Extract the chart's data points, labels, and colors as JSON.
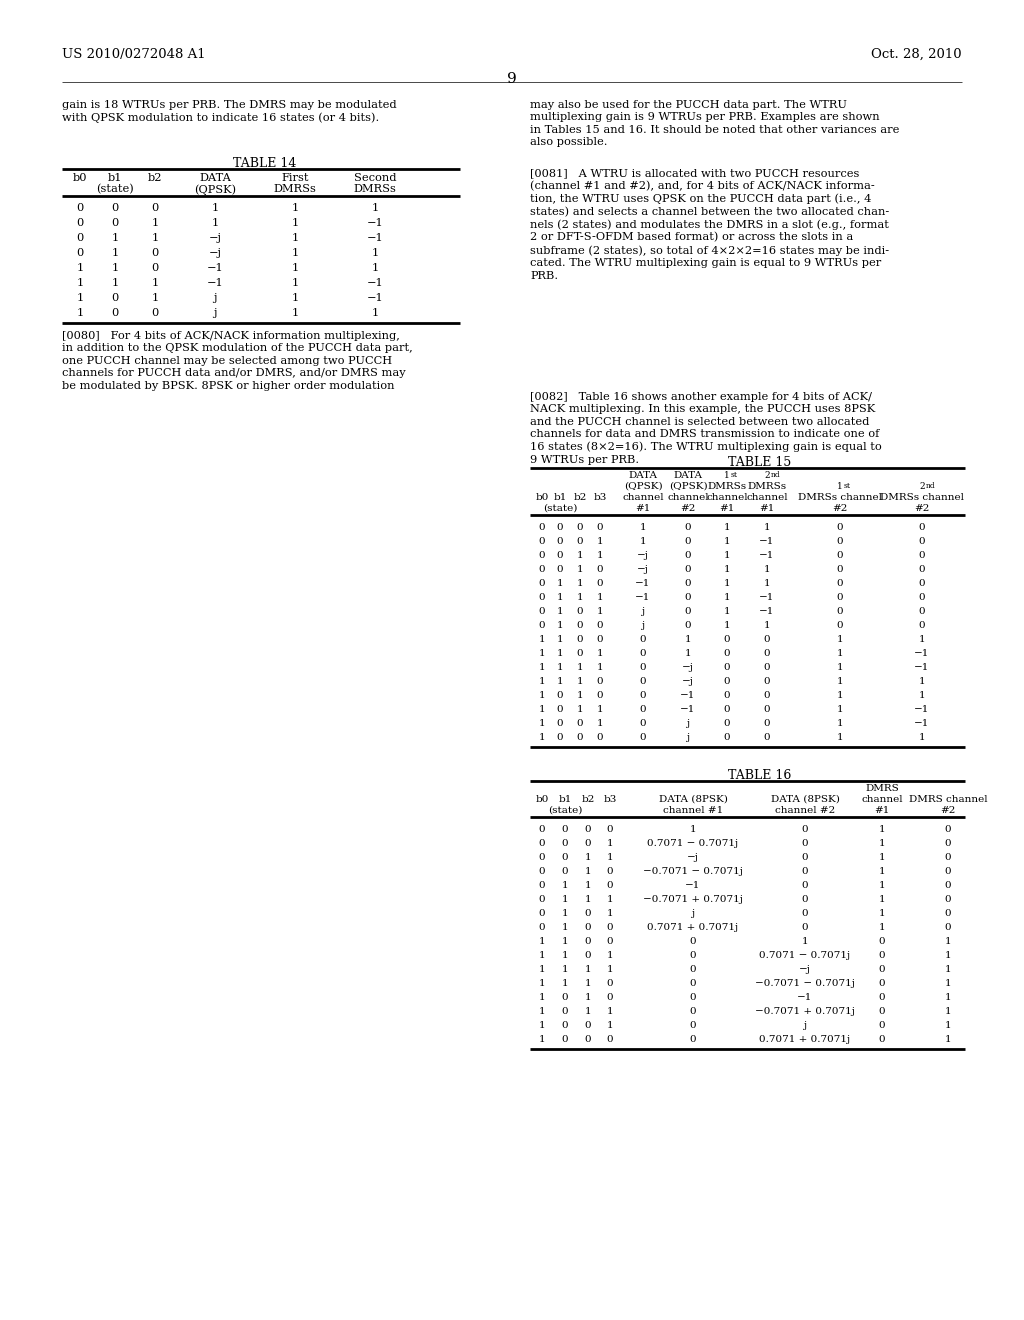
{
  "page_header_left": "US 2010/0272048 A1",
  "page_header_right": "Oct. 28, 2010",
  "page_number": "9",
  "left_col_text_1": "gain is 18 WTRUs per PRB. The DMRS may be modulated\nwith QPSK modulation to indicate 16 states (or 4 bits).",
  "left_col_text_2": "[0080]   For 4 bits of ACK/NACK information multiplexing,\nin addition to the QPSK modulation of the PUCCH data part,\none PUCCH channel may be selected among two PUCCH\nchannels for PUCCH data and/or DMRS, and/or DMRS may\nbe modulated by BPSK. 8PSK or higher order modulation",
  "right_col_text_1": "may also be used for the PUCCH data part. The WTRU\nmultiplexing gain is 9 WTRUs per PRB. Examples are shown\nin Tables 15 and 16. It should be noted that other variances are\nalso possible.",
  "right_col_text_2": "[0081]   A WTRU is allocated with two PUCCH resources\n(channel #1 and #2), and, for 4 bits of ACK/NACK informa-\ntion, the WTRU uses QPSK on the PUCCH data part (i.e., 4\nstates) and selects a channel between the two allocated chan-\nnels (2 states) and modulates the DMRS in a slot (e.g., format\n2 or DFT-S-OFDM based format) or across the slots in a\nsubframe (2 states), so total of 4×2×2=16 states may be indi-\ncated. The WTRU multiplexing gain is equal to 9 WTRUs per\nPRB.",
  "right_col_text_3": "[0082]   Table 16 shows another example for 4 bits of ACK/\nNACK multiplexing. In this example, the PUCCH uses 8PSK\nand the PUCCH channel is selected between two allocated\nchannels for data and DMRS transmission to indicate one of\n16 states (8×2=16). The WTRU multiplexing gain is equal to\n9 WTRUs per PRB.",
  "table14_title": "TABLE 14",
  "table14_data": [
    [
      "0",
      "0",
      "0",
      "1",
      "1",
      "1"
    ],
    [
      "0",
      "0",
      "1",
      "1",
      "1",
      "−1"
    ],
    [
      "0",
      "1",
      "1",
      "−j",
      "1",
      "−1"
    ],
    [
      "0",
      "1",
      "0",
      "−j",
      "1",
      "1"
    ],
    [
      "1",
      "1",
      "0",
      "−1",
      "1",
      "1"
    ],
    [
      "1",
      "1",
      "1",
      "−1",
      "1",
      "−1"
    ],
    [
      "1",
      "0",
      "1",
      "j",
      "1",
      "−1"
    ],
    [
      "1",
      "0",
      "0",
      "j",
      "1",
      "1"
    ]
  ],
  "table15_title": "TABLE 15",
  "table15_data": [
    [
      "0",
      "0",
      "0",
      "0",
      "1",
      "0",
      "1",
      "1",
      "0",
      "0"
    ],
    [
      "0",
      "0",
      "0",
      "1",
      "1",
      "0",
      "1",
      "−1",
      "0",
      "0"
    ],
    [
      "0",
      "0",
      "1",
      "1",
      "−j",
      "0",
      "1",
      "−1",
      "0",
      "0"
    ],
    [
      "0",
      "0",
      "1",
      "0",
      "−j",
      "0",
      "1",
      "1",
      "0",
      "0"
    ],
    [
      "0",
      "1",
      "1",
      "0",
      "−1",
      "0",
      "1",
      "1",
      "0",
      "0"
    ],
    [
      "0",
      "1",
      "1",
      "1",
      "−1",
      "0",
      "1",
      "−1",
      "0",
      "0"
    ],
    [
      "0",
      "1",
      "0",
      "1",
      "j",
      "0",
      "1",
      "−1",
      "0",
      "0"
    ],
    [
      "0",
      "1",
      "0",
      "0",
      "j",
      "0",
      "1",
      "1",
      "0",
      "0"
    ],
    [
      "1",
      "1",
      "0",
      "0",
      "0",
      "1",
      "0",
      "0",
      "1",
      "1"
    ],
    [
      "1",
      "1",
      "0",
      "1",
      "0",
      "1",
      "0",
      "0",
      "1",
      "−1"
    ],
    [
      "1",
      "1",
      "1",
      "1",
      "0",
      "−j",
      "0",
      "0",
      "1",
      "−1"
    ],
    [
      "1",
      "1",
      "1",
      "0",
      "0",
      "−j",
      "0",
      "0",
      "1",
      "1"
    ],
    [
      "1",
      "0",
      "1",
      "0",
      "0",
      "−1",
      "0",
      "0",
      "1",
      "1"
    ],
    [
      "1",
      "0",
      "1",
      "1",
      "0",
      "−1",
      "0",
      "0",
      "1",
      "−1"
    ],
    [
      "1",
      "0",
      "0",
      "1",
      "0",
      "j",
      "0",
      "0",
      "1",
      "−1"
    ],
    [
      "1",
      "0",
      "0",
      "0",
      "0",
      "j",
      "0",
      "0",
      "1",
      "1"
    ]
  ],
  "table16_title": "TABLE 16",
  "table16_data": [
    [
      "0",
      "0",
      "0",
      "0",
      "1",
      "0",
      "1",
      "0"
    ],
    [
      "0",
      "0",
      "0",
      "1",
      "0.7071 − 0.7071j",
      "0",
      "1",
      "0"
    ],
    [
      "0",
      "0",
      "1",
      "1",
      "−j",
      "0",
      "1",
      "0"
    ],
    [
      "0",
      "0",
      "1",
      "0",
      "−0.7071 − 0.7071j",
      "0",
      "1",
      "0"
    ],
    [
      "0",
      "1",
      "1",
      "0",
      "−1",
      "0",
      "1",
      "0"
    ],
    [
      "0",
      "1",
      "1",
      "1",
      "−0.7071 + 0.7071j",
      "0",
      "1",
      "0"
    ],
    [
      "0",
      "1",
      "0",
      "1",
      "j",
      "0",
      "1",
      "0"
    ],
    [
      "0",
      "1",
      "0",
      "0",
      "0.7071 + 0.7071j",
      "0",
      "1",
      "0"
    ],
    [
      "1",
      "1",
      "0",
      "0",
      "0",
      "1",
      "0",
      "1"
    ],
    [
      "1",
      "1",
      "0",
      "1",
      "0",
      "0.7071 − 0.7071j",
      "0",
      "1"
    ],
    [
      "1",
      "1",
      "1",
      "1",
      "0",
      "−j",
      "0",
      "1"
    ],
    [
      "1",
      "1",
      "1",
      "0",
      "0",
      "−0.7071 − 0.7071j",
      "0",
      "1"
    ],
    [
      "1",
      "0",
      "1",
      "0",
      "0",
      "−1",
      "0",
      "1"
    ],
    [
      "1",
      "0",
      "1",
      "1",
      "0",
      "−0.7071 + 0.7071j",
      "0",
      "1"
    ],
    [
      "1",
      "0",
      "0",
      "1",
      "0",
      "j",
      "0",
      "1"
    ],
    [
      "1",
      "0",
      "0",
      "0",
      "0",
      "0.7071 + 0.7071j",
      "0",
      "1"
    ]
  ],
  "bg_color": "#ffffff"
}
